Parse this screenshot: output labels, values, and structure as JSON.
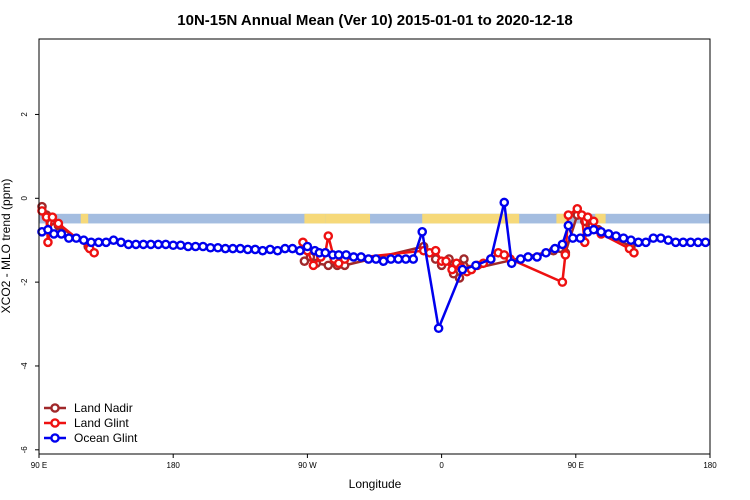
{
  "chart_data": {
    "type": "line",
    "title": "10N-15N Annual Mean (Ver 10)   2015-01-01 to 2020-12-18",
    "xlabel": "Longitude",
    "ylabel": "XCO2 - MLO trend (ppm)",
    "x_unwrapped_range": [
      90,
      450
    ],
    "xticks": [
      {
        "value": 90,
        "label": "90 E"
      },
      {
        "value": 180,
        "label": "180"
      },
      {
        "value": 270,
        "label": "90 W"
      },
      {
        "value": 360,
        "label": "0"
      },
      {
        "value": 450,
        "label": "90 E"
      },
      {
        "value": 540,
        "label": "180"
      }
    ],
    "xlim": [
      90,
      540
    ],
    "ylim": [
      -6.1,
      3.8
    ],
    "yticks": [
      {
        "value": -6,
        "label": "-6"
      },
      {
        "value": -4,
        "label": "-4"
      },
      {
        "value": -2,
        "label": "-2"
      },
      {
        "value": 0,
        "label": "0"
      },
      {
        "value": 2,
        "label": "2"
      }
    ],
    "legend_position": "bottom-left",
    "land_ocean_band": {
      "y_range": [
        -0.6,
        -0.37
      ],
      "ocean_color": "#A4BDE0",
      "land_color": "#F6D97A",
      "land_segments": [
        [
          118,
          123
        ],
        [
          268,
          282
        ],
        [
          282,
          312
        ],
        [
          347,
          412
        ],
        [
          437,
          445
        ],
        [
          463,
          470
        ]
      ]
    },
    "series": [
      {
        "name": "Land Nadir",
        "color": "#A0282A",
        "points": [
          [
            92,
            -0.2
          ],
          [
            95,
            -0.4
          ],
          [
            98,
            -0.6
          ],
          [
            100,
            -0.7
          ],
          [
            103,
            -0.65
          ],
          [
            123,
            -1.15
          ],
          [
            268,
            -1.5
          ],
          [
            272,
            -1.4
          ],
          [
            276,
            -1.55
          ],
          [
            284,
            -1.6
          ],
          [
            290,
            -1.6
          ],
          [
            295,
            -1.6
          ],
          [
            348,
            -1.15
          ],
          [
            356,
            -1.45
          ],
          [
            360,
            -1.6
          ],
          [
            365,
            -1.45
          ],
          [
            368,
            -1.8
          ],
          [
            372,
            -1.9
          ],
          [
            375,
            -1.45
          ],
          [
            379,
            -1.7
          ],
          [
            435,
            -1.25
          ],
          [
            443,
            -1.3
          ],
          [
            451,
            -0.4
          ],
          [
            456,
            -0.55
          ],
          [
            461,
            -0.65
          ],
          [
            465,
            -0.75
          ],
          [
            487,
            -1.15
          ]
        ]
      },
      {
        "name": "Land Glint",
        "color": "#EE1111",
        "points": [
          [
            92,
            -0.3
          ],
          [
            95,
            -0.45
          ],
          [
            96,
            -1.05
          ],
          [
            99,
            -0.45
          ],
          [
            103,
            -0.6
          ],
          [
            124,
            -1.2
          ],
          [
            127,
            -1.3
          ],
          [
            267,
            -1.05
          ],
          [
            270,
            -1.25
          ],
          [
            274,
            -1.6
          ],
          [
            279,
            -1.4
          ],
          [
            282,
            -1.3
          ],
          [
            284,
            -0.9
          ],
          [
            288,
            -1.45
          ],
          [
            291,
            -1.55
          ],
          [
            295,
            -1.45
          ],
          [
            348,
            -1.25
          ],
          [
            352,
            -1.3
          ],
          [
            356,
            -1.25
          ],
          [
            360,
            -1.5
          ],
          [
            363,
            -1.5
          ],
          [
            367,
            -1.7
          ],
          [
            370,
            -1.55
          ],
          [
            373,
            -1.65
          ],
          [
            377,
            -1.75
          ],
          [
            380,
            -1.7
          ],
          [
            384,
            -1.6
          ],
          [
            388,
            -1.55
          ],
          [
            393,
            -1.45
          ],
          [
            398,
            -1.3
          ],
          [
            402,
            -1.35
          ],
          [
            406,
            -1.45
          ],
          [
            441,
            -2.0
          ],
          [
            443,
            -1.35
          ],
          [
            445,
            -0.4
          ],
          [
            451,
            -0.25
          ],
          [
            454,
            -0.4
          ],
          [
            456,
            -1.05
          ],
          [
            458,
            -0.45
          ],
          [
            462,
            -0.55
          ],
          [
            467,
            -0.85
          ],
          [
            486,
            -1.2
          ],
          [
            489,
            -1.3
          ]
        ]
      },
      {
        "name": "Ocean Glint",
        "color": "#0000EE",
        "points": [
          [
            92,
            -0.8
          ],
          [
            96,
            -0.75
          ],
          [
            100,
            -0.85
          ],
          [
            105,
            -0.85
          ],
          [
            110,
            -0.95
          ],
          [
            115,
            -0.95
          ],
          [
            120,
            -1.0
          ],
          [
            125,
            -1.05
          ],
          [
            130,
            -1.05
          ],
          [
            135,
            -1.05
          ],
          [
            140,
            -1.0
          ],
          [
            145,
            -1.05
          ],
          [
            150,
            -1.1
          ],
          [
            155,
            -1.1
          ],
          [
            160,
            -1.1
          ],
          [
            165,
            -1.1
          ],
          [
            170,
            -1.1
          ],
          [
            175,
            -1.1
          ],
          [
            180,
            -1.12
          ],
          [
            185,
            -1.12
          ],
          [
            190,
            -1.15
          ],
          [
            195,
            -1.15
          ],
          [
            200,
            -1.15
          ],
          [
            205,
            -1.18
          ],
          [
            210,
            -1.18
          ],
          [
            215,
            -1.2
          ],
          [
            220,
            -1.2
          ],
          [
            225,
            -1.2
          ],
          [
            230,
            -1.22
          ],
          [
            235,
            -1.22
          ],
          [
            240,
            -1.25
          ],
          [
            245,
            -1.22
          ],
          [
            250,
            -1.25
          ],
          [
            255,
            -1.2
          ],
          [
            260,
            -1.2
          ],
          [
            265,
            -1.25
          ],
          [
            270,
            -1.15
          ],
          [
            275,
            -1.25
          ],
          [
            278,
            -1.3
          ],
          [
            282,
            -1.3
          ],
          [
            287,
            -1.35
          ],
          [
            291,
            -1.35
          ],
          [
            296,
            -1.35
          ],
          [
            301,
            -1.4
          ],
          [
            306,
            -1.4
          ],
          [
            311,
            -1.45
          ],
          [
            316,
            -1.45
          ],
          [
            321,
            -1.5
          ],
          [
            326,
            -1.45
          ],
          [
            331,
            -1.45
          ],
          [
            336,
            -1.45
          ],
          [
            341,
            -1.45
          ],
          [
            347,
            -0.8
          ],
          [
            358,
            -3.1
          ],
          [
            374,
            -1.7
          ],
          [
            383,
            -1.6
          ],
          [
            393,
            -1.45
          ],
          [
            402,
            -0.1
          ],
          [
            407,
            -1.55
          ],
          [
            413,
            -1.45
          ],
          [
            418,
            -1.4
          ],
          [
            424,
            -1.4
          ],
          [
            430,
            -1.3
          ],
          [
            436,
            -1.2
          ],
          [
            441,
            -1.1
          ],
          [
            445,
            -0.65
          ],
          [
            448,
            -0.95
          ],
          [
            453,
            -0.95
          ],
          [
            458,
            -0.8
          ],
          [
            462,
            -0.75
          ],
          [
            467,
            -0.8
          ],
          [
            472,
            -0.85
          ],
          [
            477,
            -0.9
          ],
          [
            482,
            -0.95
          ],
          [
            487,
            -1.0
          ],
          [
            492,
            -1.05
          ],
          [
            497,
            -1.05
          ],
          [
            502,
            -0.95
          ],
          [
            507,
            -0.95
          ],
          [
            512,
            -1.0
          ],
          [
            517,
            -1.05
          ],
          [
            522,
            -1.05
          ],
          [
            527,
            -1.05
          ],
          [
            532,
            -1.05
          ],
          [
            537,
            -1.05
          ]
        ]
      }
    ]
  }
}
